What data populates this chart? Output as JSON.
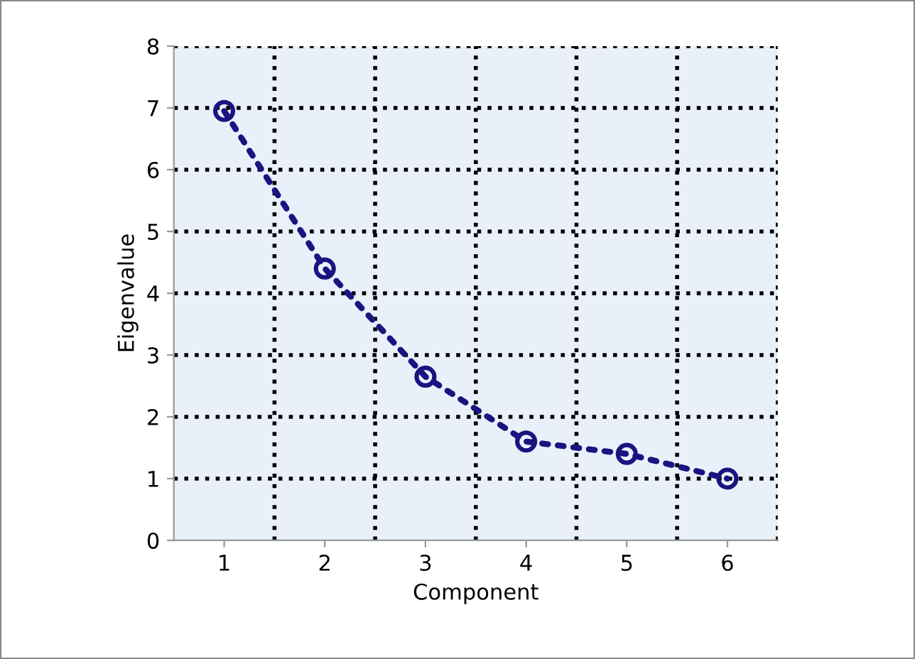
{
  "chart_data": {
    "type": "line",
    "xlabel": "Component",
    "ylabel": "Eigenvalue",
    "categories": [
      "1",
      "2",
      "3",
      "4",
      "5",
      "6"
    ],
    "series": [
      {
        "color": "#1a1480",
        "values": [
          6.95,
          4.4,
          2.65,
          1.6,
          1.4,
          1.0
        ]
      }
    ],
    "ylim": [
      0,
      8
    ],
    "yticks": [
      0,
      1,
      2,
      3,
      4,
      5,
      6,
      7,
      8
    ],
    "grid": true,
    "marker": "circle",
    "line_style": "dotted",
    "legend": false
  }
}
